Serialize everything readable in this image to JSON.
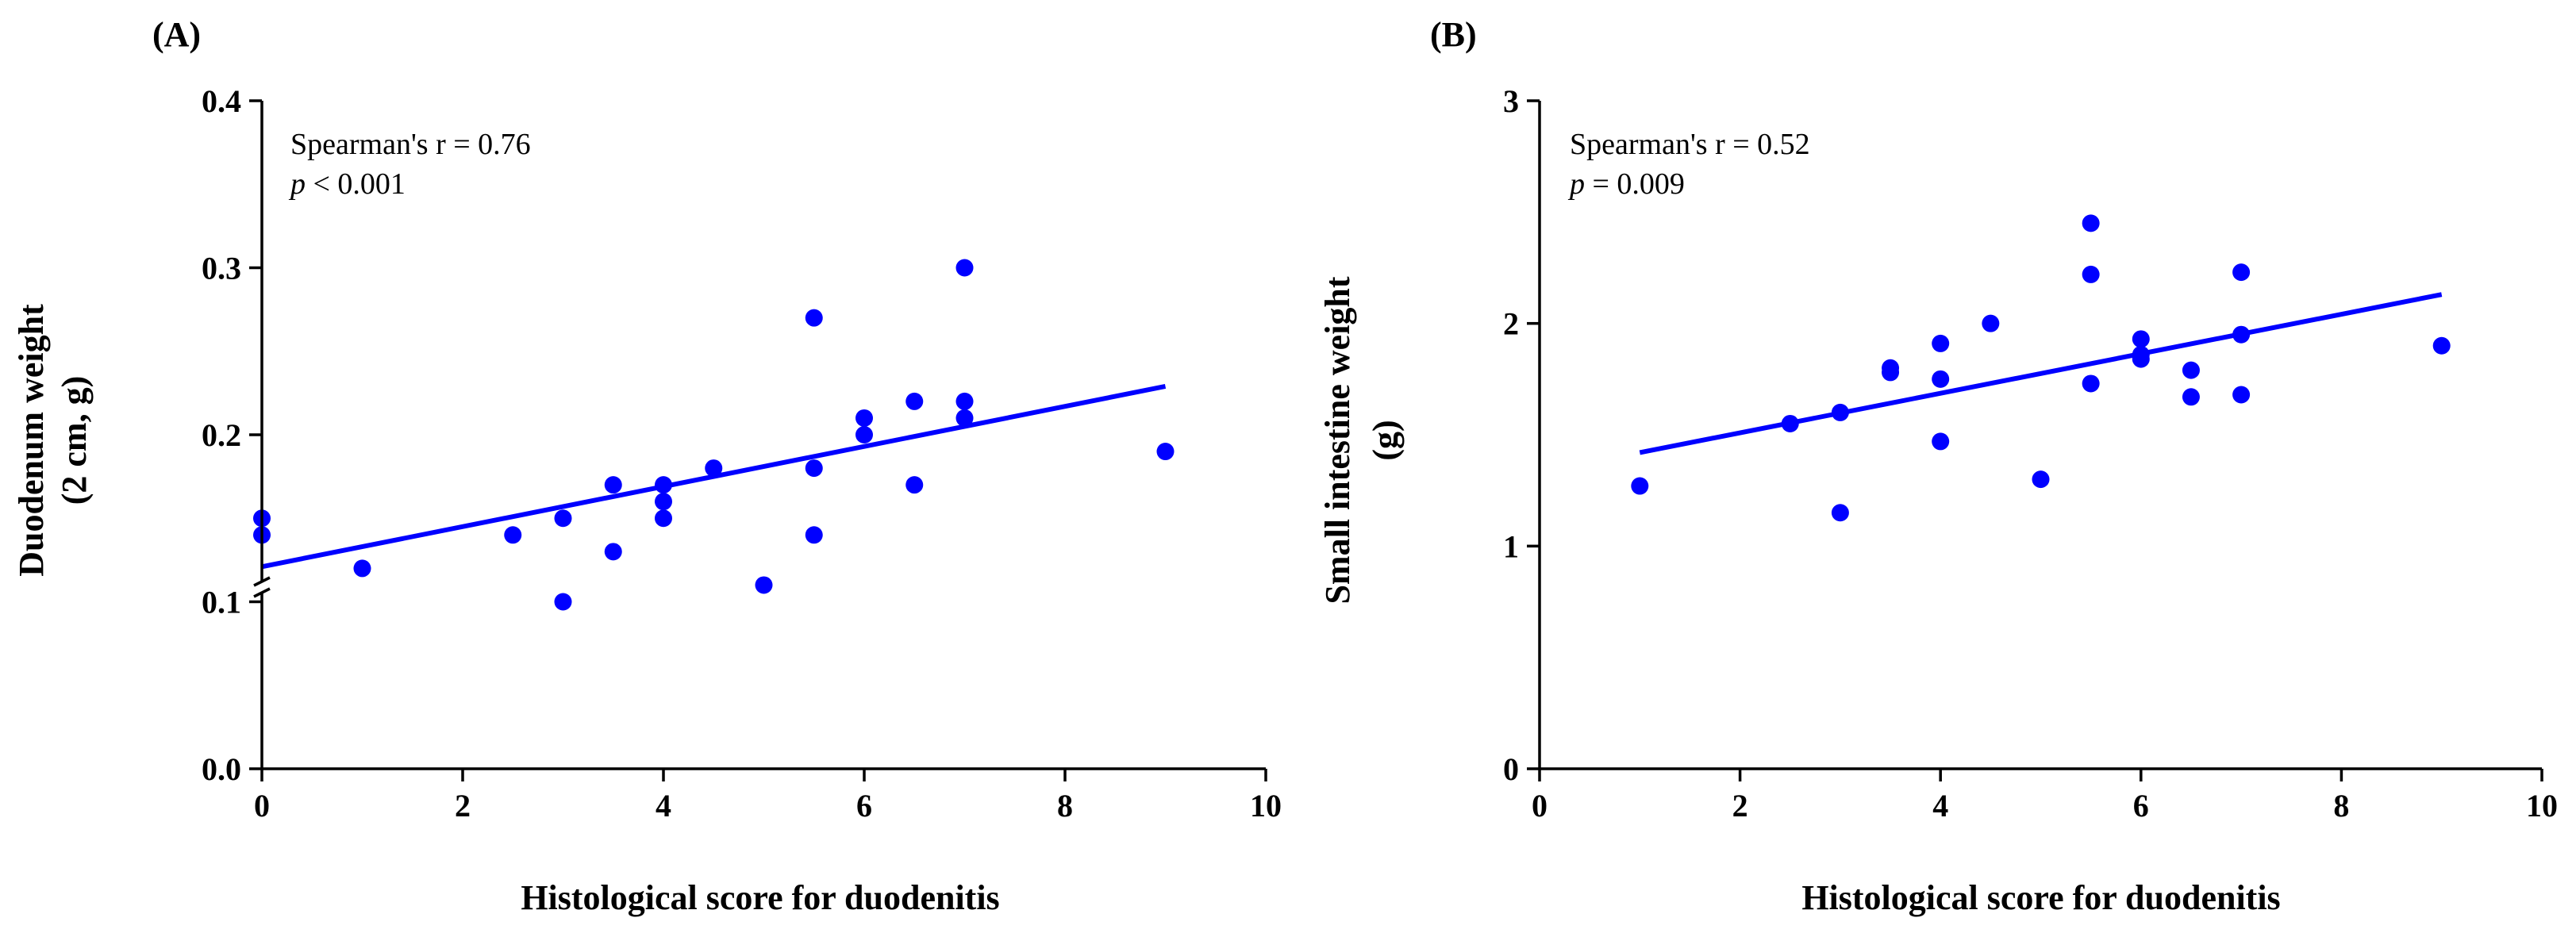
{
  "chart_data": [
    {
      "type": "scatter",
      "panel_label": "(A)",
      "xlabel": "Histological score for duodenitis",
      "ylabel": [
        "Duodenum weight",
        "(2 cm, g)"
      ],
      "xlim": [
        0,
        10
      ],
      "ylim": [
        0,
        0.4
      ],
      "axis_break": true,
      "x_ticks": [
        0,
        2,
        4,
        6,
        8,
        10
      ],
      "x_tick_labels": [
        "0",
        "2",
        "4",
        "6",
        "8",
        "10"
      ],
      "y_ticks": [
        0.0,
        0.1,
        0.2,
        0.3,
        0.4
      ],
      "y_tick_labels": [
        "0.0",
        "0.1",
        "0.2",
        "0.3",
        "0.4"
      ],
      "annotation": {
        "line1": "Spearman's r = 0.76",
        "line2_italic": "p",
        "line2_rest": " < 0.001"
      },
      "points": [
        {
          "x": 0,
          "y": 0.15
        },
        {
          "x": 0,
          "y": 0.14
        },
        {
          "x": 1,
          "y": 0.12
        },
        {
          "x": 2.5,
          "y": 0.14
        },
        {
          "x": 3,
          "y": 0.15
        },
        {
          "x": 3,
          "y": 0.1
        },
        {
          "x": 3.5,
          "y": 0.17
        },
        {
          "x": 3.5,
          "y": 0.13
        },
        {
          "x": 4,
          "y": 0.17
        },
        {
          "x": 4,
          "y": 0.16
        },
        {
          "x": 4,
          "y": 0.15
        },
        {
          "x": 4.5,
          "y": 0.18
        },
        {
          "x": 5,
          "y": 0.11
        },
        {
          "x": 5.5,
          "y": 0.27
        },
        {
          "x": 5.5,
          "y": 0.18
        },
        {
          "x": 5.5,
          "y": 0.14
        },
        {
          "x": 6,
          "y": 0.21
        },
        {
          "x": 6,
          "y": 0.2
        },
        {
          "x": 6.5,
          "y": 0.22
        },
        {
          "x": 6.5,
          "y": 0.17
        },
        {
          "x": 7,
          "y": 0.3
        },
        {
          "x": 7,
          "y": 0.22
        },
        {
          "x": 7,
          "y": 0.21
        },
        {
          "x": 9,
          "y": 0.19
        }
      ],
      "fit_line": {
        "x": [
          0,
          9
        ],
        "y": [
          0.121,
          0.229
        ]
      },
      "color": "#0000ff"
    },
    {
      "type": "scatter",
      "panel_label": "(B)",
      "xlabel": "Histological score for duodenitis",
      "ylabel": [
        "Small intestine weight",
        "(g)"
      ],
      "xlim": [
        0,
        10
      ],
      "ylim": [
        0,
        3
      ],
      "axis_break": false,
      "x_ticks": [
        0,
        2,
        4,
        6,
        8,
        10
      ],
      "x_tick_labels": [
        "0",
        "2",
        "4",
        "6",
        "8",
        "10"
      ],
      "y_ticks": [
        0,
        1,
        2,
        3
      ],
      "y_tick_labels": [
        "0",
        "1",
        "2",
        "3"
      ],
      "annotation": {
        "line1": "Spearman's r = 0.52",
        "line2_italic": "p",
        "line2_rest": " = 0.009"
      },
      "points": [
        {
          "x": 1,
          "y": 1.27
        },
        {
          "x": 2.5,
          "y": 1.55
        },
        {
          "x": 3,
          "y": 1.6
        },
        {
          "x": 3,
          "y": 1.15
        },
        {
          "x": 3.5,
          "y": 1.8
        },
        {
          "x": 3.5,
          "y": 1.78
        },
        {
          "x": 4,
          "y": 1.91
        },
        {
          "x": 4,
          "y": 1.75
        },
        {
          "x": 4,
          "y": 1.47
        },
        {
          "x": 4.5,
          "y": 2.0
        },
        {
          "x": 5,
          "y": 1.3
        },
        {
          "x": 5.5,
          "y": 2.45
        },
        {
          "x": 5.5,
          "y": 2.22
        },
        {
          "x": 5.5,
          "y": 1.73
        },
        {
          "x": 6,
          "y": 1.93
        },
        {
          "x": 6,
          "y": 1.86
        },
        {
          "x": 6,
          "y": 1.84
        },
        {
          "x": 6.5,
          "y": 1.79
        },
        {
          "x": 6.5,
          "y": 1.67
        },
        {
          "x": 7,
          "y": 2.23
        },
        {
          "x": 7,
          "y": 1.95
        },
        {
          "x": 7,
          "y": 1.68
        },
        {
          "x": 9,
          "y": 1.9
        }
      ],
      "fit_line": {
        "x": [
          1,
          9
        ],
        "y": [
          1.42,
          2.13
        ]
      },
      "color": "#0000ff"
    }
  ]
}
